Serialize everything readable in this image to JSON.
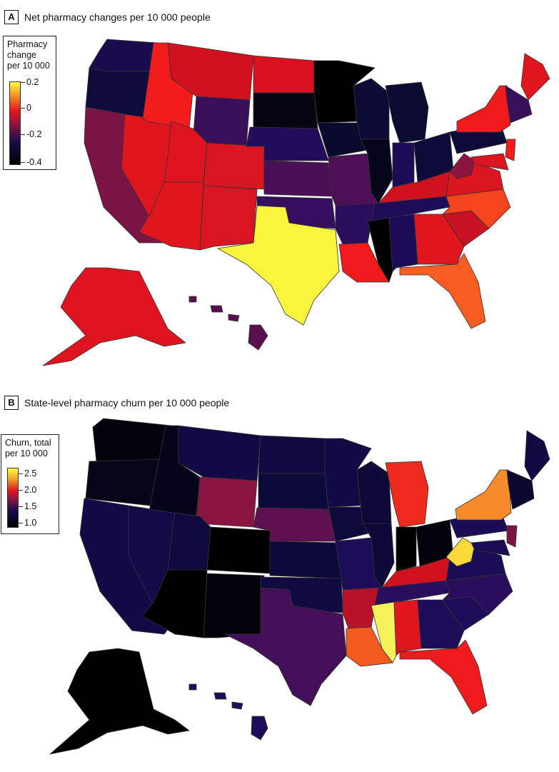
{
  "panel_a": {
    "letter": "A",
    "title": "Net pharmacy changes per 10 000 people",
    "legend_title_lines": [
      "Pharmacy",
      "change",
      "per 10 000"
    ],
    "legend_ticks": [
      "0.2",
      "0",
      "-0.2",
      "-0.4"
    ],
    "colors": {
      "WA": "#1a0c4c",
      "OR": "#0f0b3a",
      "CA": "#7a1445",
      "NV": "#e0161f",
      "ID": "#f21c1c",
      "MT": "#d0121f",
      "WY": "#3a0f5a",
      "UT": "#de1520",
      "AZ": "#e0161f",
      "CO": "#d81520",
      "NM": "#d81520",
      "ND": "#d8101f",
      "SD": "#060613",
      "NE": "#230c5a",
      "KS": "#4a0f55",
      "OK": "#360e60",
      "TX": "#f9f43c",
      "MN": "#000000",
      "IA": "#0a0a2e",
      "MO": "#4d0f55",
      "AR": "#2a0d5c",
      "LA": "#ee1a1b",
      "WI": "#0c0b35",
      "IL": "#05051c",
      "MI": "#0b0b34",
      "IN": "#1d0c55",
      "OH": "#0d0b39",
      "KY": "#d0121f",
      "TN": "#1f0c58",
      "MS": "#000000",
      "AL": "#1d0c55",
      "GA": "#e0161f",
      "FL": "#f75c21",
      "SC": "#c81222",
      "NC": "#f6441e",
      "VA": "#da1520",
      "WV": "#8c1540",
      "PA": "#0d0b39",
      "NY": "#ee1a1b",
      "ME": "#e0161f",
      "NE_small": "#3a0f5a",
      "NJ": "#f21c1c",
      "MD": "#da1520",
      "AK": "#de1520",
      "HI": "#5a1050"
    }
  },
  "panel_b": {
    "letter": "B",
    "title": "State-level pharmacy churn per 10 000 people",
    "legend_title_lines": [
      "Churn, total",
      "per 10 000"
    ],
    "legend_ticks": [
      "2.5",
      "2.0",
      "1.5",
      "1.0"
    ],
    "colors": {
      "WA": "#02020c",
      "OR": "#060618",
      "CA": "#130a45",
      "NV": "#140a48",
      "ID": "#05051a",
      "MT": "#120a45",
      "WY": "#8a1542",
      "UT": "#0f0a3e",
      "AZ": "#000000",
      "CO": "#000000",
      "NM": "#02020a",
      "ND": "#100a42",
      "SD": "#0c0a3a",
      "NE": "#5e1050",
      "KS": "#0c0a3a",
      "OK": "#100a42",
      "TX": "#440e58",
      "MN": "#120a45",
      "IA": "#0e0a3c",
      "MO": "#1d0c58",
      "AR": "#b8122a",
      "LA": "#f25a1e",
      "WI": "#0d0a3a",
      "IL": "#0d0a3a",
      "MI": "#ee2a1e",
      "IN": "#000000",
      "OH": "#03030e",
      "KY": "#d0121f",
      "TN": "#2a0d5c",
      "MS": "#f6f05a",
      "AL": "#e0161f",
      "GA": "#1d0c58",
      "FL": "#ee1a1b",
      "SC": "#1f0c58",
      "NC": "#2a0d5c",
      "VA": "#1a0c55",
      "WV": "#fad93a",
      "PA": "#1a0c55",
      "NY": "#f78a2a",
      "ME": "#100a42",
      "NE_small": "#0a0a30",
      "NJ": "#7a1445",
      "MD": "#1a0c55",
      "AK": "#000000",
      "HI": "#1d0c58"
    }
  }
}
